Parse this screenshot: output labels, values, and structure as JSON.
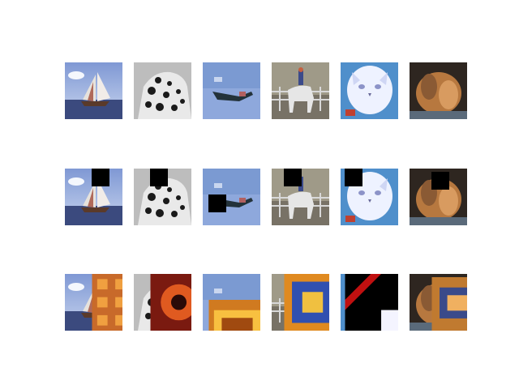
{
  "figure": {
    "rows": [
      {
        "id": "original",
        "tiles": [
          {
            "subject": "sailing-ship",
            "palette": [
              "#8fa8d8",
              "#e6eef8",
              "#3a4a7a",
              "#b04a3a"
            ]
          },
          {
            "subject": "frog-grayscale",
            "palette": [
              "#d8d8d8",
              "#1a1a1a",
              "#9a9a9a",
              "#f4f4f4"
            ]
          },
          {
            "subject": "airplane",
            "palette": [
              "#7898d0",
              "#a8bde6",
              "#2a3a40",
              "#b05a5a"
            ]
          },
          {
            "subject": "horse-rider",
            "palette": [
              "#a09a88",
              "#6e6a60",
              "#d8d8d8",
              "#c46040"
            ]
          },
          {
            "subject": "cat-white",
            "palette": [
              "#5aa0d8",
              "#eef2ff",
              "#a0a6d8",
              "#c04030"
            ]
          },
          {
            "subject": "animal-brown",
            "palette": [
              "#2e2620",
              "#b87a46",
              "#6c4a30",
              "#d89b60"
            ]
          }
        ]
      },
      {
        "id": "occluded",
        "tiles": [
          {
            "subject": "sailing-ship",
            "mask_color": "#000000"
          },
          {
            "subject": "frog-grayscale",
            "mask_color": "#000000"
          },
          {
            "subject": "airplane",
            "mask_color": "#000000"
          },
          {
            "subject": "horse-rider",
            "mask_color": "#000000"
          },
          {
            "subject": "cat-white",
            "mask_color": "#000000"
          },
          {
            "subject": "animal-brown",
            "mask_color": "#000000"
          }
        ]
      },
      {
        "id": "patched",
        "tiles": [
          {
            "subject": "sailing-ship",
            "patch_palette": [
              "#c86a2a",
              "#f0a040"
            ]
          },
          {
            "subject": "frog-grayscale",
            "patch_palette": [
              "#7a1a10",
              "#e05a20"
            ]
          },
          {
            "subject": "airplane",
            "patch_palette": [
              "#d07a20",
              "#f8c040"
            ]
          },
          {
            "subject": "horse-rider",
            "patch_palette": [
              "#e08a20",
              "#3050b0"
            ]
          },
          {
            "subject": "cat-white",
            "patch_palette": [
              "#c01010",
              "#000000"
            ]
          },
          {
            "subject": "animal-brown",
            "patch_palette": [
              "#c07a30",
              "#3a4a8a"
            ]
          }
        ]
      }
    ]
  }
}
